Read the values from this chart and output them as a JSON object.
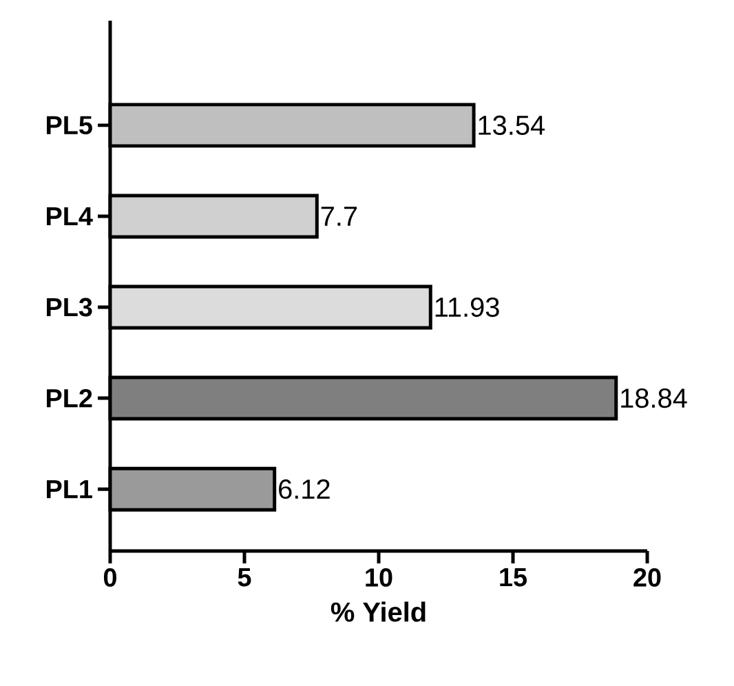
{
  "chart_data": {
    "type": "bar",
    "orientation": "horizontal",
    "categories": [
      "PL5",
      "PL4",
      "PL3",
      "PL2",
      "PL1"
    ],
    "values": [
      13.54,
      7.7,
      11.93,
      18.84,
      6.12
    ],
    "colors": [
      "#bfbfbf",
      "#d0d0d0",
      "#dcdcdc",
      "#7f7f7f",
      "#9a9a9a"
    ],
    "xlabel": "% Yield",
    "xlim": [
      0,
      20
    ],
    "xticks": [
      0,
      5,
      10,
      15,
      20
    ],
    "data_labels": true,
    "grid": false
  }
}
